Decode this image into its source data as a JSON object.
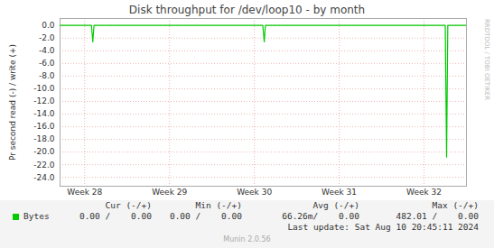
{
  "chart_data": {
    "type": "line",
    "title": "Disk throughput for /dev/loop10 - by month",
    "y_label": "Pr second read (-) / write (+)",
    "x": [
      27.71,
      28.08,
      28.096,
      28.11,
      30.1,
      30.117,
      30.13,
      32.25,
      32.266,
      32.28,
      32.5
    ],
    "series": [
      {
        "name": "Bytes",
        "color": "#00cc00",
        "values": [
          0,
          0,
          -2.6,
          0,
          0,
          -2.6,
          0,
          0,
          -20.8,
          0,
          0
        ]
      }
    ],
    "xlim": [
      27.71,
      32.5
    ],
    "xticks": [
      {
        "value": 28,
        "label": "Week 28"
      },
      {
        "value": 29,
        "label": "Week 29"
      },
      {
        "value": 30,
        "label": "Week 30"
      },
      {
        "value": 31,
        "label": "Week 31"
      },
      {
        "value": 32,
        "label": "Week 32"
      }
    ],
    "ylim": [
      -25.4,
      1.1
    ],
    "yticks": [
      {
        "value": 0,
        "label": "0.0"
      },
      {
        "value": -2,
        "label": "-2.0"
      },
      {
        "value": -4,
        "label": "-4.0"
      },
      {
        "value": -6,
        "label": "-6.0"
      },
      {
        "value": -8,
        "label": "-8.0"
      },
      {
        "value": -10,
        "label": "-10.0"
      },
      {
        "value": -12,
        "label": "-12.0"
      },
      {
        "value": -14,
        "label": "-14.0"
      },
      {
        "value": -16,
        "label": "-16.0"
      },
      {
        "value": -18,
        "label": "-18.0"
      },
      {
        "value": -20,
        "label": "-20.0"
      },
      {
        "value": -22,
        "label": "-22.0"
      },
      {
        "value": -24,
        "label": "-24.0"
      }
    ],
    "grid": true,
    "legend_table": {
      "columns": [
        "Cur (-/+)",
        "Min (-/+)",
        "Avg (-/+)",
        "Max (-/+)"
      ],
      "rows": [
        {
          "name": "Bytes",
          "cells": [
            "0.00 /    0.00",
            "0.00 /    0.00",
            "66.26m/    0.00",
            "482.01 /    0.00"
          ]
        }
      ]
    },
    "last_update": "Last update: Sat Aug 10 20:45:11 2024",
    "footer": "Munin 2.0.56",
    "watermark": "RRDTOOL / TOBI OETIKER"
  }
}
